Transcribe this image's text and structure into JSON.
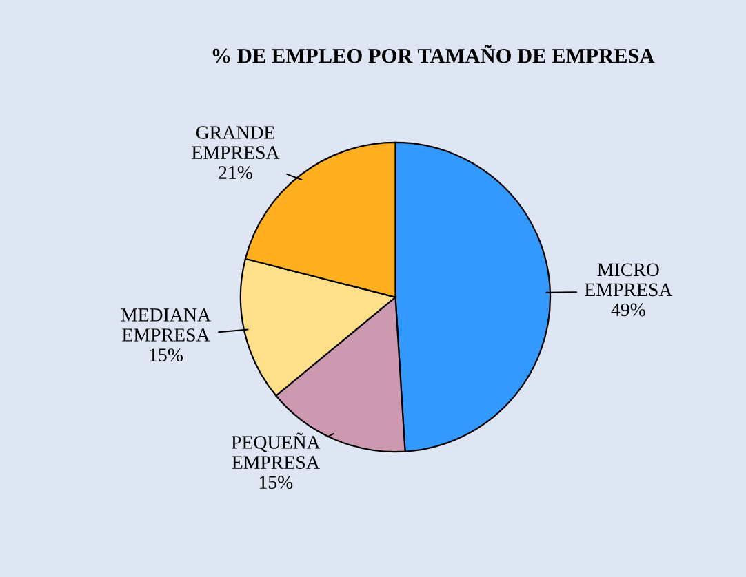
{
  "chart_data": {
    "type": "pie",
    "title": "% DE EMPLEO POR TAMAÑO DE EMPRESA",
    "categories": [
      "MICRO EMPRESA",
      "PEQUEÑA EMPRESA",
      "MEDIANA EMPRESA",
      "GRANDE EMPRESA"
    ],
    "values": [
      49,
      15,
      15,
      21
    ],
    "value_labels": [
      "49%",
      "15%",
      "15%",
      "21%"
    ],
    "colors": [
      "#3399ff",
      "#cc99b0",
      "#ffe08a",
      "#ffb020"
    ],
    "legend": false
  }
}
